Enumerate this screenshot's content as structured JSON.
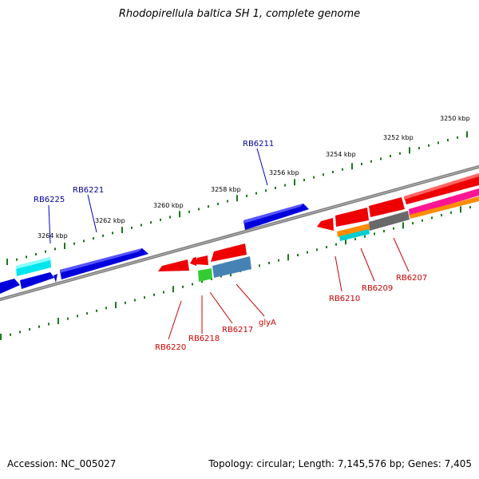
{
  "title": "Rhodopirellula baltica SH 1, complete genome",
  "footer": {
    "accession": "Accession: NC_005027",
    "summary": "Topology: circular; Length: 7,145,576 bp; Genes: 7,405"
  },
  "ruler_labels": [
    "3250 kbp",
    "3252 kbp",
    "3254 kbp",
    "3256 kbp",
    "3258 kbp",
    "3260 kbp",
    "3262 kbp",
    "3264 kbp"
  ],
  "gene_labels_top": [
    "RB6225",
    "RB6221",
    "RB6211"
  ],
  "gene_labels_bottom": [
    "RB6220",
    "RB6218",
    "RB6217",
    "glyA",
    "RB6210",
    "RB6209",
    "RB6207"
  ],
  "colors": {
    "backbone": "#808080",
    "forward_gene": "#0000dd",
    "reverse_gene": "#ee0000",
    "ticks": "#1a7a1a",
    "label_top": "#000099",
    "label_bottom": "#cc0000"
  }
}
